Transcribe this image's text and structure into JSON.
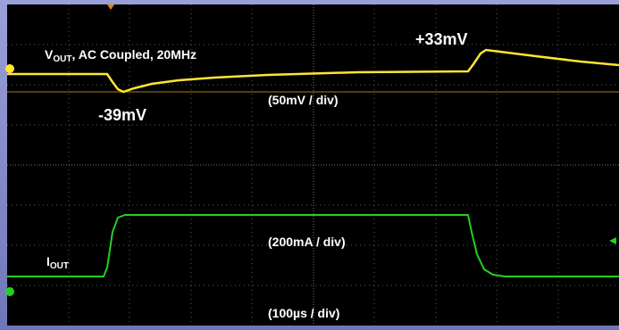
{
  "traces": [
    {
      "symbol": "V",
      "subscript": "OUT",
      "description": ", AC Coupled, 20MHz",
      "scale": "(50mV / div)"
    },
    {
      "symbol": "I",
      "subscript": "OUT",
      "scale": "(200mA / div)"
    }
  ],
  "annotations": {
    "peak": "+33mV",
    "dip": "-39mV"
  },
  "timebase": "(100µs / div)"
}
